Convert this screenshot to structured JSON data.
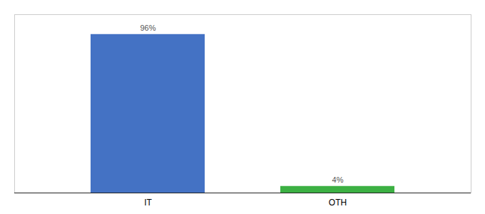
{
  "chart_data": {
    "type": "bar",
    "categories": [
      "IT",
      "OTH"
    ],
    "values": [
      96,
      4
    ],
    "value_labels": [
      "96%",
      "4%"
    ],
    "colors": [
      "#4472c4",
      "#3cb043"
    ],
    "ylim": [
      0,
      108
    ],
    "data_labels": true,
    "tick_labels": "x"
  }
}
